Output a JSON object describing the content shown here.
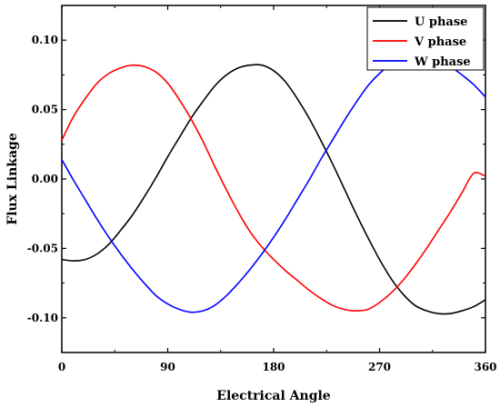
{
  "chart_data": {
    "type": "line",
    "xlabel": "Electrical Angle",
    "ylabel": "Flux Linkage",
    "xlim": [
      0,
      360
    ],
    "ylim": [
      -0.125,
      0.125
    ],
    "xticks": [
      0,
      90,
      180,
      270,
      360
    ],
    "xtick_labels": [
      "0",
      "90",
      "180",
      "270",
      "360"
    ],
    "yticks": [
      0.1,
      0.05,
      0.0,
      -0.05,
      -0.1
    ],
    "ytick_labels": [
      "0.10",
      "0.05",
      "0.00",
      "-0.05",
      "-0.10"
    ],
    "grid": false,
    "legend_position": "top-right",
    "series": [
      {
        "name": "U phase",
        "color": "#000000",
        "x": [
          0,
          10,
          20,
          30,
          40,
          50,
          60,
          70,
          80,
          90,
          100,
          110,
          120,
          130,
          140,
          150,
          160,
          170,
          180,
          190,
          200,
          210,
          220,
          230,
          240,
          250,
          260,
          270,
          280,
          290,
          300,
          310,
          320,
          330,
          340,
          350,
          360
        ],
        "y": [
          -0.058,
          -0.059,
          -0.058,
          -0.054,
          -0.047,
          -0.037,
          -0.026,
          -0.013,
          0.001,
          0.016,
          0.03,
          0.044,
          0.056,
          0.067,
          0.075,
          0.08,
          0.082,
          0.082,
          0.078,
          0.07,
          0.058,
          0.044,
          0.028,
          0.011,
          -0.007,
          -0.025,
          -0.042,
          -0.058,
          -0.072,
          -0.083,
          -0.091,
          -0.095,
          -0.097,
          -0.097,
          -0.095,
          -0.092,
          -0.087
        ]
      },
      {
        "name": "V phase",
        "color": "#ff0000",
        "x": [
          0,
          10,
          20,
          30,
          40,
          50,
          60,
          70,
          80,
          90,
          100,
          110,
          120,
          130,
          140,
          150,
          160,
          170,
          180,
          190,
          200,
          210,
          220,
          230,
          240,
          250,
          260,
          270,
          280,
          290,
          300,
          310,
          320,
          330,
          340,
          350,
          360
        ],
        "y": [
          0.028,
          0.045,
          0.058,
          0.069,
          0.076,
          0.08,
          0.082,
          0.081,
          0.077,
          0.069,
          0.057,
          0.043,
          0.027,
          0.009,
          -0.008,
          -0.024,
          -0.038,
          -0.049,
          -0.058,
          -0.066,
          -0.073,
          -0.08,
          -0.086,
          -0.091,
          -0.094,
          -0.095,
          -0.094,
          -0.089,
          -0.082,
          -0.073,
          -0.062,
          -0.05,
          -0.037,
          -0.024,
          -0.01,
          0.004,
          0.002
        ]
      },
      {
        "name": "W phase",
        "color": "#0000ff",
        "x": [
          0,
          10,
          20,
          30,
          40,
          50,
          60,
          70,
          80,
          90,
          100,
          110,
          120,
          130,
          140,
          150,
          160,
          170,
          180,
          190,
          200,
          210,
          220,
          230,
          240,
          250,
          260,
          270,
          280,
          290,
          300,
          310,
          320,
          330,
          340,
          350,
          360
        ],
        "y": [
          0.014,
          -0.001,
          -0.015,
          -0.029,
          -0.042,
          -0.054,
          -0.065,
          -0.075,
          -0.084,
          -0.09,
          -0.094,
          -0.096,
          -0.095,
          -0.091,
          -0.084,
          -0.075,
          -0.065,
          -0.054,
          -0.042,
          -0.029,
          -0.015,
          -0.001,
          0.014,
          0.028,
          0.042,
          0.055,
          0.067,
          0.076,
          0.083,
          0.087,
          0.089,
          0.088,
          0.085,
          0.081,
          0.075,
          0.068,
          0.059
        ]
      }
    ]
  },
  "legend": {
    "items": [
      {
        "label": "U phase",
        "color": "#000000"
      },
      {
        "label": "V phase",
        "color": "#ff0000"
      },
      {
        "label": "W phase",
        "color": "#0000ff"
      }
    ]
  }
}
